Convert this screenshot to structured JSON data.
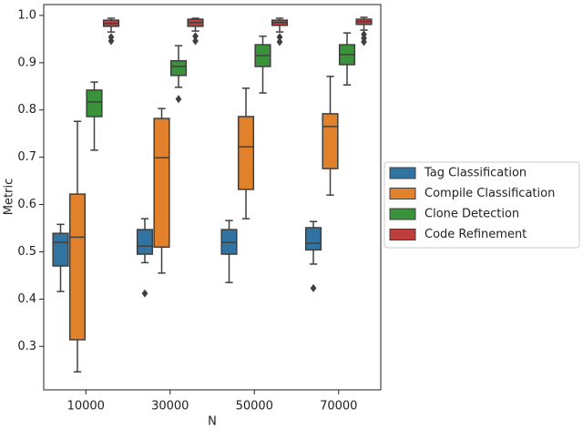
{
  "chart_data": {
    "type": "box",
    "x_label": "N",
    "y_label": "Metric",
    "categories": [
      "10000",
      "30000",
      "50000",
      "70000"
    ],
    "ylim": [
      0.208,
      1.023
    ],
    "yticks": [
      0.3,
      0.4,
      0.5,
      0.6,
      0.7,
      0.8,
      0.9,
      {
        "value": 1.0,
        "label": "1.0"
      }
    ],
    "legend_position": "right",
    "series": [
      {
        "name": "Tag Classification",
        "color": "#3274a1",
        "boxes": [
          {
            "whislo": 0.416,
            "q1": 0.47,
            "med": 0.52,
            "q3": 0.539,
            "whishi": 0.558,
            "fliers": []
          },
          {
            "whislo": 0.477,
            "q1": 0.495,
            "med": 0.512,
            "q3": 0.547,
            "whishi": 0.57,
            "fliers": [
              0.412
            ]
          },
          {
            "whislo": 0.435,
            "q1": 0.495,
            "med": 0.52,
            "q3": 0.547,
            "whishi": 0.566,
            "fliers": []
          },
          {
            "whislo": 0.474,
            "q1": 0.504,
            "med": 0.518,
            "q3": 0.551,
            "whishi": 0.564,
            "fliers": [
              0.423
            ]
          }
        ]
      },
      {
        "name": "Compile Classification",
        "color": "#e1812c",
        "boxes": [
          {
            "whislo": 0.246,
            "q1": 0.314,
            "med": 0.531,
            "q3": 0.622,
            "whishi": 0.776,
            "fliers": []
          },
          {
            "whislo": 0.455,
            "q1": 0.51,
            "med": 0.699,
            "q3": 0.782,
            "whishi": 0.803,
            "fliers": []
          },
          {
            "whislo": 0.57,
            "q1": 0.632,
            "med": 0.722,
            "q3": 0.786,
            "whishi": 0.846,
            "fliers": []
          },
          {
            "whislo": 0.62,
            "q1": 0.676,
            "med": 0.765,
            "q3": 0.792,
            "whishi": 0.871,
            "fliers": []
          }
        ]
      },
      {
        "name": "Clone Detection",
        "color": "#3a923a",
        "boxes": [
          {
            "whislo": 0.715,
            "q1": 0.786,
            "med": 0.817,
            "q3": 0.842,
            "whishi": 0.859,
            "fliers": []
          },
          {
            "whislo": 0.848,
            "q1": 0.873,
            "med": 0.892,
            "q3": 0.904,
            "whishi": 0.936,
            "fliers": [
              0.823
            ]
          },
          {
            "whislo": 0.836,
            "q1": 0.892,
            "med": 0.915,
            "q3": 0.938,
            "whishi": 0.956,
            "fliers": []
          },
          {
            "whislo": 0.853,
            "q1": 0.896,
            "med": 0.917,
            "q3": 0.938,
            "whishi": 0.963,
            "fliers": []
          }
        ]
      },
      {
        "name": "Code Refinement",
        "color": "#c03d3e",
        "boxes": [
          {
            "whislo": 0.965,
            "q1": 0.977,
            "med": 0.983,
            "q3": 0.99,
            "whishi": 0.994,
            "fliers": [
              0.954,
              0.946
            ]
          },
          {
            "whislo": 0.967,
            "q1": 0.977,
            "med": 0.985,
            "q3": 0.992,
            "whishi": 0.994,
            "fliers": [
              0.956,
              0.946
            ]
          },
          {
            "whislo": 0.965,
            "q1": 0.979,
            "med": 0.985,
            "q3": 0.99,
            "whishi": 0.994,
            "fliers": [
              0.954,
              0.944
            ]
          },
          {
            "whislo": 0.969,
            "q1": 0.981,
            "med": 0.987,
            "q3": 0.992,
            "whishi": 0.996,
            "fliers": [
              0.96,
              0.952,
              0.944
            ]
          }
        ]
      }
    ]
  }
}
